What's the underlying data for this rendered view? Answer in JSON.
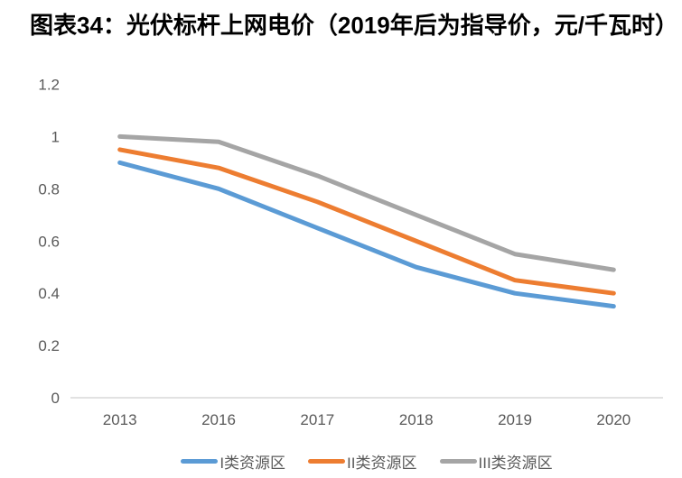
{
  "title": "图表34：光伏标杆上网电价（2019年后为指导价，元/千瓦时）",
  "chart_data": {
    "type": "line",
    "title": "图表34：光伏标杆上网电价（2019年后为指导价，元/千瓦时）",
    "categories": [
      "2013",
      "2016",
      "2017",
      "2018",
      "2019",
      "2020"
    ],
    "series": [
      {
        "name": "I类资源区",
        "color": "#5B9BD5",
        "values": [
          0.9,
          0.8,
          0.65,
          0.5,
          0.4,
          0.35
        ]
      },
      {
        "name": "II类资源区",
        "color": "#ED7D31",
        "values": [
          0.95,
          0.88,
          0.75,
          0.6,
          0.45,
          0.4
        ]
      },
      {
        "name": "III类资源区",
        "color": "#A5A5A5",
        "values": [
          1.0,
          0.98,
          0.85,
          0.7,
          0.55,
          0.49
        ]
      }
    ],
    "xlabel": "",
    "ylabel": "",
    "ylim": [
      0,
      1.2
    ],
    "y_ticks": [
      0,
      0.2,
      0.4,
      0.6,
      0.8,
      1,
      1.2
    ],
    "grid": false,
    "legend_position": "bottom"
  },
  "style": {
    "background": "#FFFFFF",
    "axis_line_color": "#D9D9D9",
    "tick_label_color": "#595959",
    "legend_label_color": "#595959",
    "title_color": "#000000"
  }
}
